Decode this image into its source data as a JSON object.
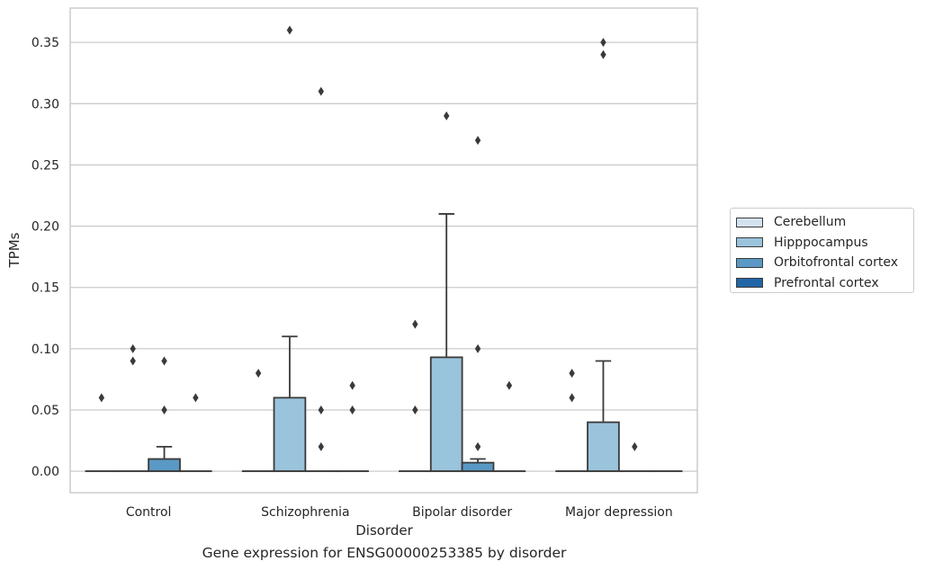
{
  "caption": "Gene expression for ENSG00000253385 by disorder",
  "chart_data": {
    "type": "box",
    "xlabel": "Disorder",
    "ylabel": "TPMs",
    "ylim": [
      -0.0175,
      0.378
    ],
    "yticks": [
      0.0,
      0.05,
      0.1,
      0.15,
      0.2,
      0.25,
      0.3,
      0.35
    ],
    "ytick_labels": [
      "0.00",
      "0.05",
      "0.10",
      "0.15",
      "0.20",
      "0.25",
      "0.30",
      "0.35"
    ],
    "grid": true,
    "legend_position": "right",
    "categories": [
      "Control",
      "Schizophrenia",
      "Bipolar disorder",
      "Major depression"
    ],
    "series": [
      {
        "name": "Cerebellum",
        "color": "#d4e2ef",
        "boxes": [
          {
            "q1": 0,
            "median": 0,
            "q3": 0,
            "whisker_low": 0,
            "whisker_high": 0,
            "outliers": [
              0.06
            ]
          },
          {
            "q1": 0,
            "median": 0,
            "q3": 0,
            "whisker_low": 0,
            "whisker_high": 0,
            "outliers": [
              0.08
            ]
          },
          {
            "q1": 0,
            "median": 0,
            "q3": 0,
            "whisker_low": 0,
            "whisker_high": 0,
            "outliers": [
              0.12,
              0.05
            ]
          },
          {
            "q1": 0,
            "median": 0,
            "q3": 0,
            "whisker_low": 0,
            "whisker_high": 0,
            "outliers": [
              0.08,
              0.06
            ]
          }
        ]
      },
      {
        "name": "Hipppocampus",
        "color": "#9ac3dc",
        "boxes": [
          {
            "q1": 0,
            "median": 0,
            "q3": 0,
            "whisker_low": 0,
            "whisker_high": 0,
            "outliers": [
              0.1,
              0.09
            ]
          },
          {
            "q1": 0,
            "median": 0,
            "q3": 0.06,
            "whisker_low": 0,
            "whisker_high": 0.11,
            "outliers": [
              0.36
            ]
          },
          {
            "q1": 0,
            "median": 0,
            "q3": 0.093,
            "whisker_low": 0,
            "whisker_high": 0.21,
            "outliers": [
              0.29
            ]
          },
          {
            "q1": 0,
            "median": 0,
            "q3": 0.04,
            "whisker_low": 0,
            "whisker_high": 0.09,
            "outliers": [
              0.35,
              0.34
            ]
          }
        ]
      },
      {
        "name": "Orbitofrontal cortex",
        "color": "#5a99c5",
        "boxes": [
          {
            "q1": 0,
            "median": 0,
            "q3": 0.01,
            "whisker_low": 0,
            "whisker_high": 0.02,
            "outliers": [
              0.09,
              0.05
            ]
          },
          {
            "q1": 0,
            "median": 0,
            "q3": 0,
            "whisker_low": 0,
            "whisker_high": 0,
            "outliers": [
              0.31,
              0.05,
              0.02
            ]
          },
          {
            "q1": 0,
            "median": 0,
            "q3": 0.007,
            "whisker_low": 0,
            "whisker_high": 0.01,
            "outliers": [
              0.27,
              0.1,
              0.02
            ]
          },
          {
            "q1": 0,
            "median": 0,
            "q3": 0,
            "whisker_low": 0,
            "whisker_high": 0,
            "outliers": [
              0.02
            ]
          }
        ]
      },
      {
        "name": "Prefrontal cortex",
        "color": "#2166a6",
        "boxes": [
          {
            "q1": 0,
            "median": 0,
            "q3": 0,
            "whisker_low": 0,
            "whisker_high": 0,
            "outliers": [
              0.06
            ]
          },
          {
            "q1": 0,
            "median": 0,
            "q3": 0,
            "whisker_low": 0,
            "whisker_high": 0,
            "outliers": [
              0.07,
              0.05
            ]
          },
          {
            "q1": 0,
            "median": 0,
            "q3": 0,
            "whisker_low": 0,
            "whisker_high": 0,
            "outliers": [
              0.07
            ]
          },
          {
            "q1": 0,
            "median": 0,
            "q3": 0,
            "whisker_low": 0,
            "whisker_high": 0,
            "outliers": []
          }
        ]
      }
    ]
  }
}
